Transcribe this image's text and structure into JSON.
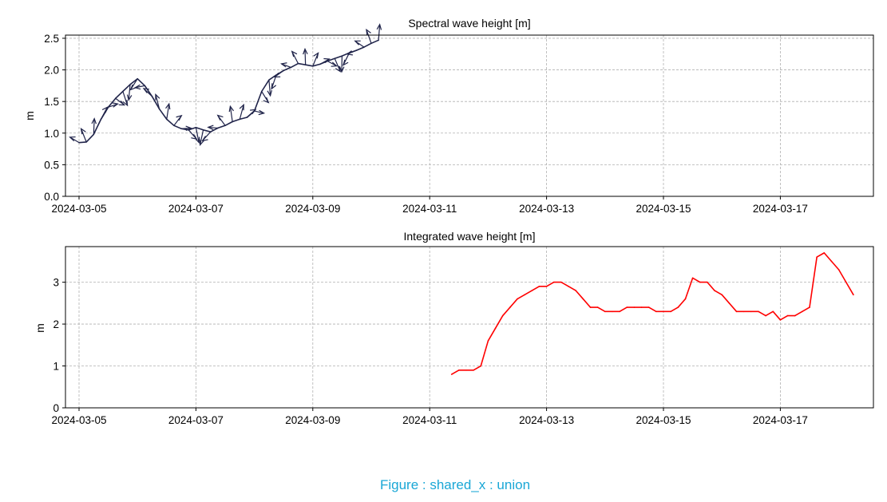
{
  "caption": "Figure : shared_x : union",
  "chart_data": [
    {
      "type": "line",
      "title": "Spectral wave height [m]",
      "ylabel": "m",
      "xlabel": "",
      "x_axis": "date",
      "xlim": [
        "2024-03-05 00:00",
        "2024-03-18 18:00"
      ],
      "ylim": [
        0,
        2.55
      ],
      "yticks": [
        "0.0",
        "0.5",
        "1.0",
        "1.5",
        "2.0",
        "2.5"
      ],
      "xticks": [
        "2024-03-05",
        "2024-03-07",
        "2024-03-09",
        "2024-03-11",
        "2024-03-13",
        "2024-03-15",
        "2024-03-17"
      ],
      "grid": true,
      "line_color": "#20244a",
      "arrow_color": "#20244a",
      "series": [
        {
          "x": [
            "2024-03-05 00:00",
            "2024-03-05 03:00",
            "2024-03-05 06:00",
            "2024-03-05 09:00",
            "2024-03-05 12:00",
            "2024-03-05 15:00",
            "2024-03-05 18:00",
            "2024-03-05 21:00",
            "2024-03-06 00:00",
            "2024-03-06 03:00",
            "2024-03-06 06:00",
            "2024-03-06 09:00",
            "2024-03-06 12:00",
            "2024-03-06 15:00",
            "2024-03-06 18:00",
            "2024-03-06 21:00",
            "2024-03-07 00:00",
            "2024-03-07 03:00",
            "2024-03-07 06:00",
            "2024-03-07 09:00",
            "2024-03-07 12:00",
            "2024-03-07 15:00",
            "2024-03-07 18:00",
            "2024-03-07 21:00",
            "2024-03-08 00:00",
            "2024-03-08 03:00",
            "2024-03-08 06:00",
            "2024-03-08 09:00",
            "2024-03-08 12:00",
            "2024-03-08 15:00",
            "2024-03-08 18:00",
            "2024-03-08 21:00",
            "2024-03-09 00:00",
            "2024-03-09 03:00",
            "2024-03-09 06:00",
            "2024-03-09 09:00",
            "2024-03-09 12:00",
            "2024-03-09 15:00",
            "2024-03-09 18:00",
            "2024-03-09 21:00",
            "2024-03-10 00:00",
            "2024-03-10 03:00"
          ],
          "y": [
            0.85,
            0.86,
            0.98,
            1.22,
            1.41,
            1.55,
            1.66,
            1.77,
            1.86,
            1.75,
            1.58,
            1.38,
            1.22,
            1.12,
            1.07,
            1.05,
            1.09,
            1.05,
            1.02,
            1.08,
            1.12,
            1.18,
            1.22,
            1.25,
            1.35,
            1.66,
            1.84,
            1.92,
            1.99,
            2.04,
            2.1,
            2.08,
            2.06,
            2.09,
            2.14,
            2.18,
            2.22,
            2.27,
            2.31,
            2.36,
            2.42,
            2.47
          ]
        }
      ]
    },
    {
      "type": "line",
      "title": "Integrated wave height [m]",
      "ylabel": "m",
      "xlabel": "",
      "x_axis": "date",
      "xlim": [
        "2024-03-05 00:00",
        "2024-03-18 18:00"
      ],
      "ylim": [
        0,
        3.85
      ],
      "yticks": [
        "0",
        "1",
        "2",
        "3"
      ],
      "xticks": [
        "2024-03-05",
        "2024-03-07",
        "2024-03-09",
        "2024-03-11",
        "2024-03-13",
        "2024-03-15",
        "2024-03-17"
      ],
      "grid": true,
      "line_color": "#ff0000",
      "series": [
        {
          "x": [
            "2024-03-11 09:00",
            "2024-03-11 12:00",
            "2024-03-11 15:00",
            "2024-03-11 18:00",
            "2024-03-11 21:00",
            "2024-03-12 00:00",
            "2024-03-12 03:00",
            "2024-03-12 06:00",
            "2024-03-12 09:00",
            "2024-03-12 12:00",
            "2024-03-12 15:00",
            "2024-03-12 18:00",
            "2024-03-12 21:00",
            "2024-03-13 00:00",
            "2024-03-13 03:00",
            "2024-03-13 06:00",
            "2024-03-13 09:00",
            "2024-03-13 12:00",
            "2024-03-13 15:00",
            "2024-03-13 18:00",
            "2024-03-13 21:00",
            "2024-03-14 00:00",
            "2024-03-14 03:00",
            "2024-03-14 06:00",
            "2024-03-14 09:00",
            "2024-03-14 12:00",
            "2024-03-14 15:00",
            "2024-03-14 18:00",
            "2024-03-14 21:00",
            "2024-03-15 00:00",
            "2024-03-15 03:00",
            "2024-03-15 06:00",
            "2024-03-15 09:00",
            "2024-03-15 12:00",
            "2024-03-15 15:00",
            "2024-03-15 18:00",
            "2024-03-15 21:00",
            "2024-03-16 00:00",
            "2024-03-16 03:00",
            "2024-03-16 06:00",
            "2024-03-16 09:00",
            "2024-03-16 12:00",
            "2024-03-16 15:00",
            "2024-03-16 18:00",
            "2024-03-16 21:00",
            "2024-03-17 00:00",
            "2024-03-17 03:00",
            "2024-03-17 06:00",
            "2024-03-17 09:00",
            "2024-03-17 12:00",
            "2024-03-17 15:00",
            "2024-03-17 18:00",
            "2024-03-17 21:00",
            "2024-03-18 00:00",
            "2024-03-18 03:00",
            "2024-03-18 06:00"
          ],
          "y": [
            0.8,
            0.9,
            0.9,
            0.9,
            1.0,
            1.6,
            1.9,
            2.2,
            2.4,
            2.6,
            2.7,
            2.8,
            2.9,
            2.9,
            3.0,
            3.0,
            2.9,
            2.8,
            2.6,
            2.4,
            2.4,
            2.3,
            2.3,
            2.3,
            2.4,
            2.4,
            2.4,
            2.4,
            2.3,
            2.3,
            2.3,
            2.4,
            2.6,
            3.1,
            3.0,
            3.0,
            2.8,
            2.7,
            2.5,
            2.3,
            2.3,
            2.3,
            2.3,
            2.2,
            2.3,
            2.1,
            2.2,
            2.2,
            2.3,
            2.4,
            3.6,
            3.7,
            3.5,
            3.3,
            3.0,
            2.7
          ]
        }
      ]
    }
  ]
}
